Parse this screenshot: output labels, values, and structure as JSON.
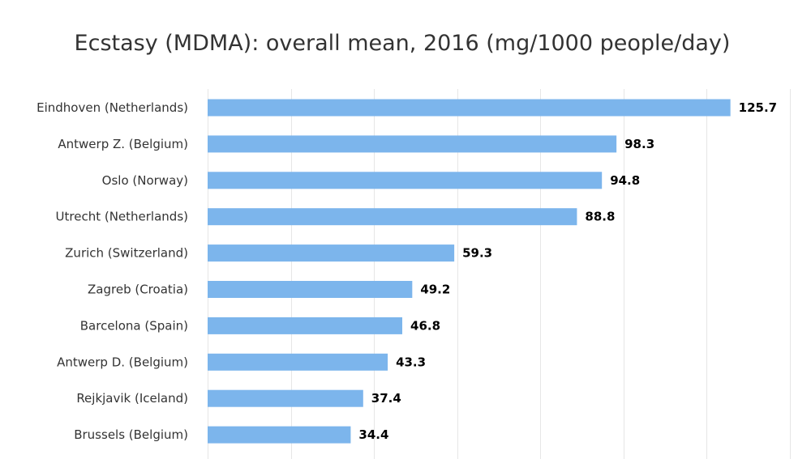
{
  "chart_data": {
    "type": "bar",
    "orientation": "horizontal",
    "title": "Ecstasy (MDMA): overall mean, 2016 (mg/1000 people/day)",
    "xlabel": "",
    "ylabel": "",
    "categories": [
      "Eindhoven (Netherlands)",
      "Antwerp Z. (Belgium)",
      "Oslo (Norway)",
      "Utrecht (Netherlands)",
      "Zurich (Switzerland)",
      "Zagreb (Croatia)",
      "Barcelona (Spain)",
      "Antwerp D. (Belgium)",
      "Rejkjavik (Iceland)",
      "Brussels (Belgium)"
    ],
    "values": [
      125.7,
      98.3,
      94.8,
      88.8,
      59.3,
      49.2,
      46.8,
      43.3,
      37.4,
      34.4
    ],
    "value_labels": [
      "125.7",
      "98.3",
      "94.8",
      "88.8",
      "59.3",
      "49.2",
      "46.8",
      "43.3",
      "37.4",
      "34.4"
    ],
    "xlim": [
      0,
      140
    ],
    "grid_step": 20,
    "grid": true,
    "legend": "none",
    "bar_color": "#7cb5ec"
  }
}
